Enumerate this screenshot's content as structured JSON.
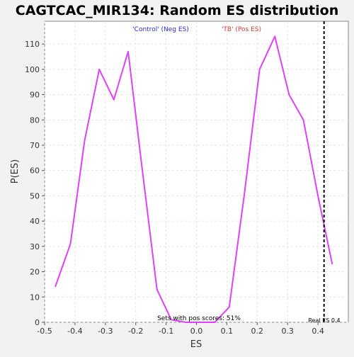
{
  "chart_data": {
    "type": "line",
    "title": "CAGTCAC_MIR134: Random ES distribution",
    "xlabel": "ES",
    "ylabel": "P(ES)",
    "xlim": [
      -0.5,
      0.5
    ],
    "ylim": [
      0,
      119
    ],
    "xticks": [
      -0.5,
      -0.4,
      -0.3,
      -0.2,
      -0.1,
      0.0,
      0.1,
      0.2,
      0.3,
      0.4
    ],
    "xtick_labels": [
      "-0.5",
      "-0.4",
      "-0.3",
      "-0.2",
      "-0.1",
      "0.0",
      "0.1",
      "0.2",
      "0.3",
      "0.4"
    ],
    "yticks": [
      0,
      10,
      20,
      30,
      40,
      50,
      60,
      70,
      80,
      90,
      100,
      110
    ],
    "ytick_labels": [
      "0",
      "10",
      "20",
      "30",
      "40",
      "50",
      "60",
      "70",
      "80",
      "90",
      "100",
      "110"
    ],
    "grid": true,
    "series": [
      {
        "color": "#e040fb",
        "x": [
          -0.465,
          -0.415,
          -0.368,
          -0.32,
          -0.272,
          -0.225,
          -0.178,
          -0.13,
          -0.083,
          -0.035,
          0.012,
          0.06,
          0.108,
          0.158,
          0.208,
          0.258,
          0.305,
          0.352,
          0.4,
          0.447
        ],
        "y": [
          14,
          31,
          72,
          100,
          88,
          107,
          60,
          13,
          1,
          0,
          0,
          0,
          6,
          51,
          100,
          113,
          90,
          80,
          50,
          23
        ]
      }
    ],
    "legend": [
      {
        "label": "'Control' (Neg ES)",
        "color": "#2b2bd9"
      },
      {
        "label": "'TB' (Pos ES)",
        "color": "#d93a3a"
      }
    ],
    "annotations": {
      "pos_scores": "Sets with pos scores: 51%",
      "real_es_label": "Real ES 0.4",
      "real_es_value": 0.42
    }
  }
}
